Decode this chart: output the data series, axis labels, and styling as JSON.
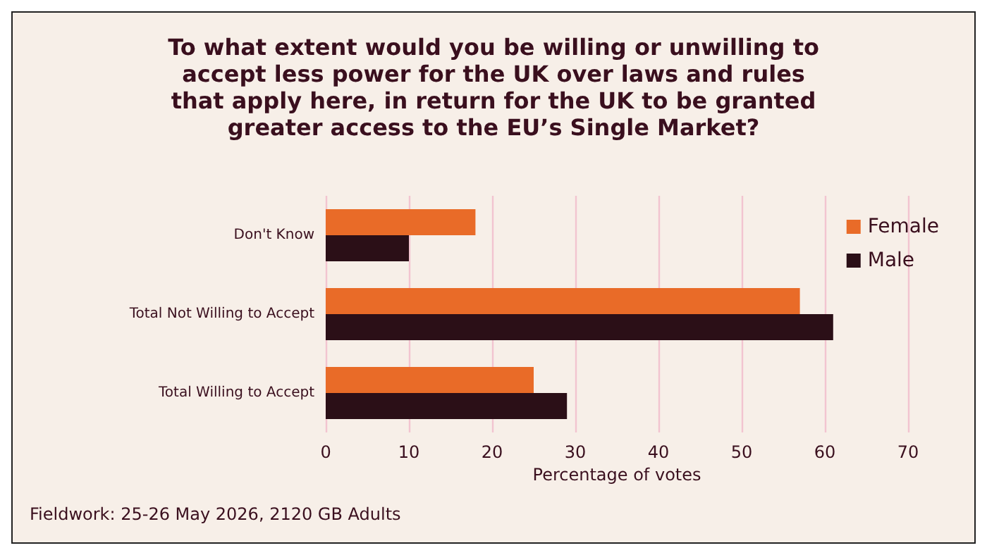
{
  "chart_data": {
    "type": "bar",
    "orientation": "horizontal",
    "title": "To what extent would you be willing or unwilling to\naccept less power for the UK over laws and rules\nthat apply here, in return for the UK to be granted\ngreater access to the EU’s Single Market?",
    "categories": [
      "Don't Know",
      "Total Not Willing to Accept",
      "Total Willing to Accept"
    ],
    "series": [
      {
        "name": "Female",
        "color": "#e96b28",
        "values": [
          18,
          57,
          25
        ]
      },
      {
        "name": "Male",
        "color": "#2b0f17",
        "values": [
          10,
          61,
          29
        ]
      }
    ],
    "xlabel": "Percentage of votes",
    "xlim": [
      0,
      70
    ],
    "xticks": [
      0,
      10,
      20,
      30,
      40,
      50,
      60,
      70
    ],
    "grid": "x",
    "legend": "top right",
    "annotations": [
      "Fieldwork: 25-26 May 2026, 2120 GB Adults"
    ]
  }
}
